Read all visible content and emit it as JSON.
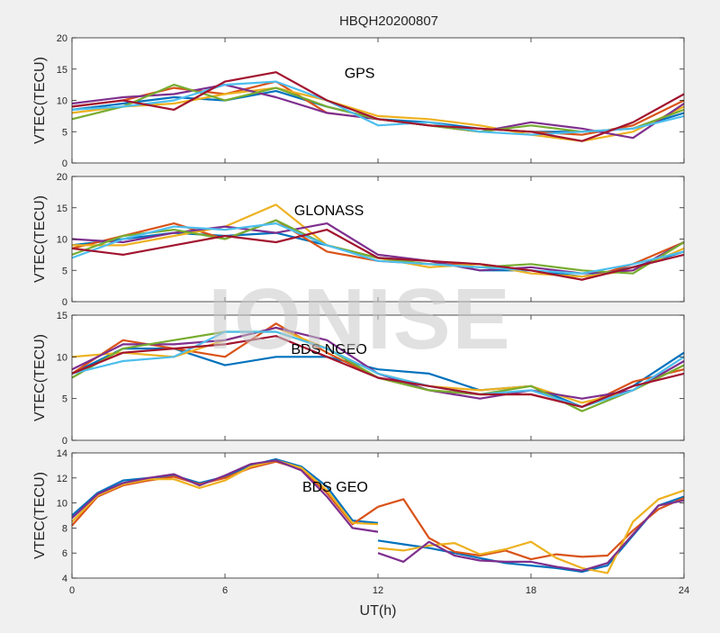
{
  "figure": {
    "title": "HBQH20200807",
    "xlabel": "UT(h)",
    "watermark": "IONISE"
  },
  "chart_data": [
    {
      "type": "line",
      "annotation": "GPS",
      "ylabel": "VTEC(TECU)",
      "xlim": [
        0,
        24
      ],
      "ylim": [
        0,
        20
      ],
      "xticks": [
        0,
        6,
        12,
        18,
        24
      ],
      "yticks": [
        0,
        5,
        10,
        15,
        20
      ],
      "grid": false,
      "series": [
        {
          "color": "#0072BD",
          "x": [
            0,
            2,
            4,
            6,
            8,
            10,
            12,
            14,
            16,
            18,
            20,
            22,
            24
          ],
          "y": [
            8.5,
            9.5,
            10.5,
            10,
            11.5,
            9,
            7,
            6.5,
            5.5,
            5,
            5,
            5.5,
            8
          ]
        },
        {
          "color": "#D95319",
          "x": [
            0,
            2,
            4,
            6,
            8,
            10,
            12,
            14,
            16,
            18,
            20,
            22,
            24
          ],
          "y": [
            9,
            10,
            12,
            11,
            13,
            8,
            7,
            6,
            5.5,
            5,
            4.5,
            6,
            10
          ]
        },
        {
          "color": "#EDB120",
          "x": [
            0,
            2,
            4,
            6,
            8,
            10,
            12,
            14,
            16,
            18,
            20,
            22,
            24
          ],
          "y": [
            8,
            9,
            9.5,
            11,
            12,
            10,
            7.5,
            7,
            6,
            4.5,
            3.5,
            5,
            9
          ]
        },
        {
          "color": "#7E2F8E",
          "x": [
            0,
            2,
            4,
            6,
            8,
            10,
            12,
            14,
            16,
            18,
            20,
            22,
            24
          ],
          "y": [
            9.5,
            10.5,
            11,
            12.5,
            10.5,
            8,
            7,
            6,
            5,
            6.5,
            5.5,
            4,
            9.5
          ]
        },
        {
          "color": "#77AC30",
          "x": [
            0,
            2,
            4,
            6,
            8,
            10,
            12,
            14,
            16,
            18,
            20,
            22,
            24
          ],
          "y": [
            7,
            9,
            12.5,
            10,
            12,
            9,
            7,
            6,
            5,
            6,
            5,
            5.5,
            8.5
          ]
        },
        {
          "color": "#4DBEEE",
          "x": [
            0,
            2,
            4,
            6,
            8,
            10,
            12,
            14,
            16,
            18,
            20,
            22,
            24
          ],
          "y": [
            8.5,
            9,
            10,
            12.5,
            13,
            10,
            6,
            6.5,
            5,
            4.5,
            5,
            5.5,
            7.5
          ]
        },
        {
          "color": "#A2142F",
          "x": [
            0,
            2,
            4,
            6,
            8,
            10,
            12,
            14,
            16,
            18,
            20,
            22,
            24
          ],
          "y": [
            9,
            10,
            8.5,
            13,
            14.5,
            10,
            7,
            6,
            5.5,
            5,
            3.5,
            6.5,
            11
          ]
        }
      ]
    },
    {
      "type": "line",
      "annotation": "GLONASS",
      "ylabel": "VTEC(TECU)",
      "xlim": [
        0,
        24
      ],
      "ylim": [
        0,
        20
      ],
      "xticks": [
        0,
        6,
        12,
        18,
        24
      ],
      "yticks": [
        0,
        5,
        10,
        15,
        20
      ],
      "grid": false,
      "series": [
        {
          "color": "#0072BD",
          "x": [
            0,
            2,
            4,
            6,
            8,
            10,
            12,
            14,
            16,
            18,
            20,
            22,
            24
          ],
          "y": [
            9,
            10,
            11,
            10.5,
            11,
            9,
            7,
            6.5,
            5,
            5,
            4,
            5.5,
            8
          ]
        },
        {
          "color": "#D95319",
          "x": [
            0,
            2,
            4,
            6,
            8,
            10,
            12,
            14,
            16,
            18,
            20,
            22,
            24
          ],
          "y": [
            8.5,
            10.5,
            12.5,
            10,
            13,
            8,
            6.5,
            6,
            6,
            5,
            3.5,
            6,
            9.5
          ]
        },
        {
          "color": "#EDB120",
          "x": [
            0,
            2,
            4,
            6,
            8,
            10,
            12,
            14,
            16,
            18,
            20,
            22,
            24
          ],
          "y": [
            9,
            9,
            10.5,
            12,
            15.5,
            9,
            7,
            5.5,
            6,
            4.5,
            4,
            5,
            8.5
          ]
        },
        {
          "color": "#7E2F8E",
          "x": [
            0,
            2,
            4,
            6,
            8,
            10,
            12,
            14,
            16,
            18,
            20,
            22,
            24
          ],
          "y": [
            10,
            9.5,
            11,
            12,
            11,
            12.5,
            7.5,
            6.5,
            5,
            5.5,
            4.5,
            5,
            9.5
          ]
        },
        {
          "color": "#77AC30",
          "x": [
            0,
            2,
            4,
            6,
            8,
            10,
            12,
            14,
            16,
            18,
            20,
            22,
            24
          ],
          "y": [
            7.5,
            10.5,
            11.5,
            10,
            13,
            9,
            7,
            6,
            5.5,
            6,
            5,
            4.5,
            9.5
          ]
        },
        {
          "color": "#4DBEEE",
          "x": [
            0,
            2,
            4,
            6,
            8,
            10,
            12,
            14,
            16,
            18,
            20,
            22,
            24
          ],
          "y": [
            7,
            10,
            12,
            11.5,
            12.5,
            9,
            6.5,
            6,
            5.5,
            5,
            4.5,
            6,
            8
          ]
        },
        {
          "color": "#A2142F",
          "x": [
            0,
            2,
            4,
            6,
            8,
            10,
            12,
            14,
            16,
            18,
            20,
            22,
            24
          ],
          "y": [
            8.5,
            7.5,
            9,
            10.5,
            9.5,
            11.5,
            7,
            6.5,
            6,
            5,
            3.5,
            5.5,
            7.5
          ]
        }
      ]
    },
    {
      "type": "line",
      "annotation": "BDS NGEO",
      "ylabel": "VTEC(TECU)",
      "xlim": [
        0,
        24
      ],
      "ylim": [
        0,
        15
      ],
      "xticks": [
        0,
        6,
        12,
        18,
        24
      ],
      "yticks": [
        0,
        5,
        10,
        15
      ],
      "grid": false,
      "series": [
        {
          "color": "#0072BD",
          "x": [
            0,
            2,
            4,
            6,
            8,
            10,
            12,
            14,
            16,
            18,
            20,
            22,
            24
          ],
          "y": [
            8,
            11,
            11,
            9,
            10,
            10,
            8.5,
            8,
            6,
            6.5,
            4,
            6.5,
            10.5
          ]
        },
        {
          "color": "#D95319",
          "x": [
            0,
            2,
            4,
            6,
            8,
            10,
            12,
            14,
            16,
            18,
            20,
            22,
            24
          ],
          "y": [
            8,
            12,
            11,
            10,
            14,
            10.5,
            7.5,
            6,
            5.5,
            5.5,
            4,
            7,
            8.5
          ]
        },
        {
          "color": "#EDB120",
          "x": [
            0,
            2,
            4,
            6,
            8,
            10,
            12,
            14,
            16,
            18,
            20,
            22,
            24
          ],
          "y": [
            10,
            10.5,
            10,
            12,
            13.5,
            11,
            8,
            6.5,
            6,
            6.5,
            4.5,
            6,
            9
          ]
        },
        {
          "color": "#7E2F8E",
          "x": [
            0,
            2,
            4,
            6,
            8,
            10,
            12,
            14,
            16,
            18,
            20,
            22,
            24
          ],
          "y": [
            8.5,
            11.5,
            11.5,
            12,
            13.5,
            12,
            8,
            6,
            5,
            6,
            5,
            6,
            9.5
          ]
        },
        {
          "color": "#77AC30",
          "x": [
            0,
            2,
            4,
            6,
            8,
            10,
            12,
            14,
            16,
            18,
            20,
            22,
            24
          ],
          "y": [
            7.5,
            11,
            12,
            13,
            13,
            11,
            7.5,
            6,
            5.5,
            6.5,
            3.5,
            6,
            9
          ]
        },
        {
          "color": "#4DBEEE",
          "x": [
            0,
            2,
            4,
            6,
            8,
            10,
            12,
            14,
            16,
            18,
            20,
            22,
            24
          ],
          "y": [
            8,
            9.5,
            10,
            13,
            13,
            11,
            8,
            6.5,
            5.5,
            6,
            4,
            6,
            10
          ]
        },
        {
          "color": "#A2142F",
          "x": [
            0,
            2,
            4,
            6,
            8,
            10,
            12,
            14,
            16,
            18,
            20,
            22,
            24
          ],
          "y": [
            8,
            10.5,
            11,
            11.5,
            12.5,
            10,
            7.5,
            6.5,
            5.5,
            5.5,
            4,
            6.5,
            8
          ]
        }
      ]
    },
    {
      "type": "line",
      "annotation": "BDS GEO",
      "ylabel": "VTEC(TECU)",
      "xlim": [
        0,
        24
      ],
      "ylim": [
        4,
        14
      ],
      "xticks": [
        0,
        6,
        12,
        18,
        24
      ],
      "yticks": [
        4,
        6,
        8,
        10,
        12,
        14
      ],
      "grid": false,
      "series": [
        {
          "color": "#0072BD",
          "x": [
            0,
            1,
            2,
            3,
            4,
            5,
            6,
            7,
            8,
            9,
            10,
            11,
            12
          ],
          "y": [
            9,
            10.8,
            11.8,
            12,
            12.2,
            11.6,
            12.1,
            13,
            13.5,
            12.9,
            11.3,
            8.6,
            8.4
          ]
        },
        {
          "color": "#0072BD",
          "x": [
            12,
            13,
            14,
            15,
            16,
            17,
            18,
            19,
            20,
            21,
            22,
            23,
            24
          ],
          "y": [
            7,
            6.7,
            6.4,
            6,
            5.6,
            5.2,
            5,
            4.8,
            4.5,
            5,
            7.4,
            9.8,
            10.5
          ]
        },
        {
          "color": "#D95319",
          "x": [
            0,
            1,
            2,
            3,
            4,
            5,
            6,
            7,
            8,
            9,
            10,
            11,
            12
          ],
          "y": [
            8.2,
            10.5,
            11.4,
            11.8,
            12.1,
            11.5,
            12,
            12.8,
            13.3,
            12.7,
            10.8,
            8.3,
            9.7
          ]
        },
        {
          "color": "#D95319",
          "x": [
            12,
            13,
            14,
            15,
            16,
            17,
            18,
            19,
            20,
            21,
            22,
            23,
            24
          ],
          "y": [
            9.7,
            10.3,
            7.2,
            6.1,
            5.8,
            6.2,
            5.5,
            5.9,
            5.7,
            5.8,
            7.8,
            9.5,
            10.4
          ]
        },
        {
          "color": "#EDB120",
          "x": [
            0,
            1,
            2,
            3,
            4,
            5,
            6,
            7,
            8,
            9,
            10,
            11,
            12
          ],
          "y": [
            8.5,
            10.6,
            11.5,
            11.9,
            11.9,
            11.2,
            11.8,
            12.9,
            13.4,
            12.8,
            11,
            8.4,
            8.3
          ]
        },
        {
          "color": "#EDB120",
          "x": [
            12,
            13,
            14,
            15,
            16,
            17,
            18,
            19,
            20,
            21,
            22,
            23,
            24
          ],
          "y": [
            6.4,
            6.2,
            6.6,
            6.8,
            5.9,
            6.3,
            6.9,
            5.6,
            4.8,
            4.4,
            8.5,
            10.3,
            11
          ]
        },
        {
          "color": "#7E2F8E",
          "x": [
            0,
            1,
            2,
            3,
            4,
            5,
            6,
            7,
            8,
            9,
            10,
            11,
            12
          ],
          "y": [
            8.8,
            10.7,
            11.6,
            12,
            12.3,
            11.4,
            12.2,
            13.1,
            13.4,
            12.6,
            10.5,
            8,
            7.7
          ]
        },
        {
          "color": "#7E2F8E",
          "x": [
            12,
            13,
            14,
            15,
            16,
            17,
            18,
            19,
            20,
            21,
            22,
            23,
            24
          ],
          "y": [
            6,
            5.3,
            6.9,
            5.8,
            5.4,
            5.3,
            5.3,
            4.9,
            4.6,
            5.2,
            7.5,
            9.8,
            10.2
          ]
        }
      ]
    }
  ]
}
